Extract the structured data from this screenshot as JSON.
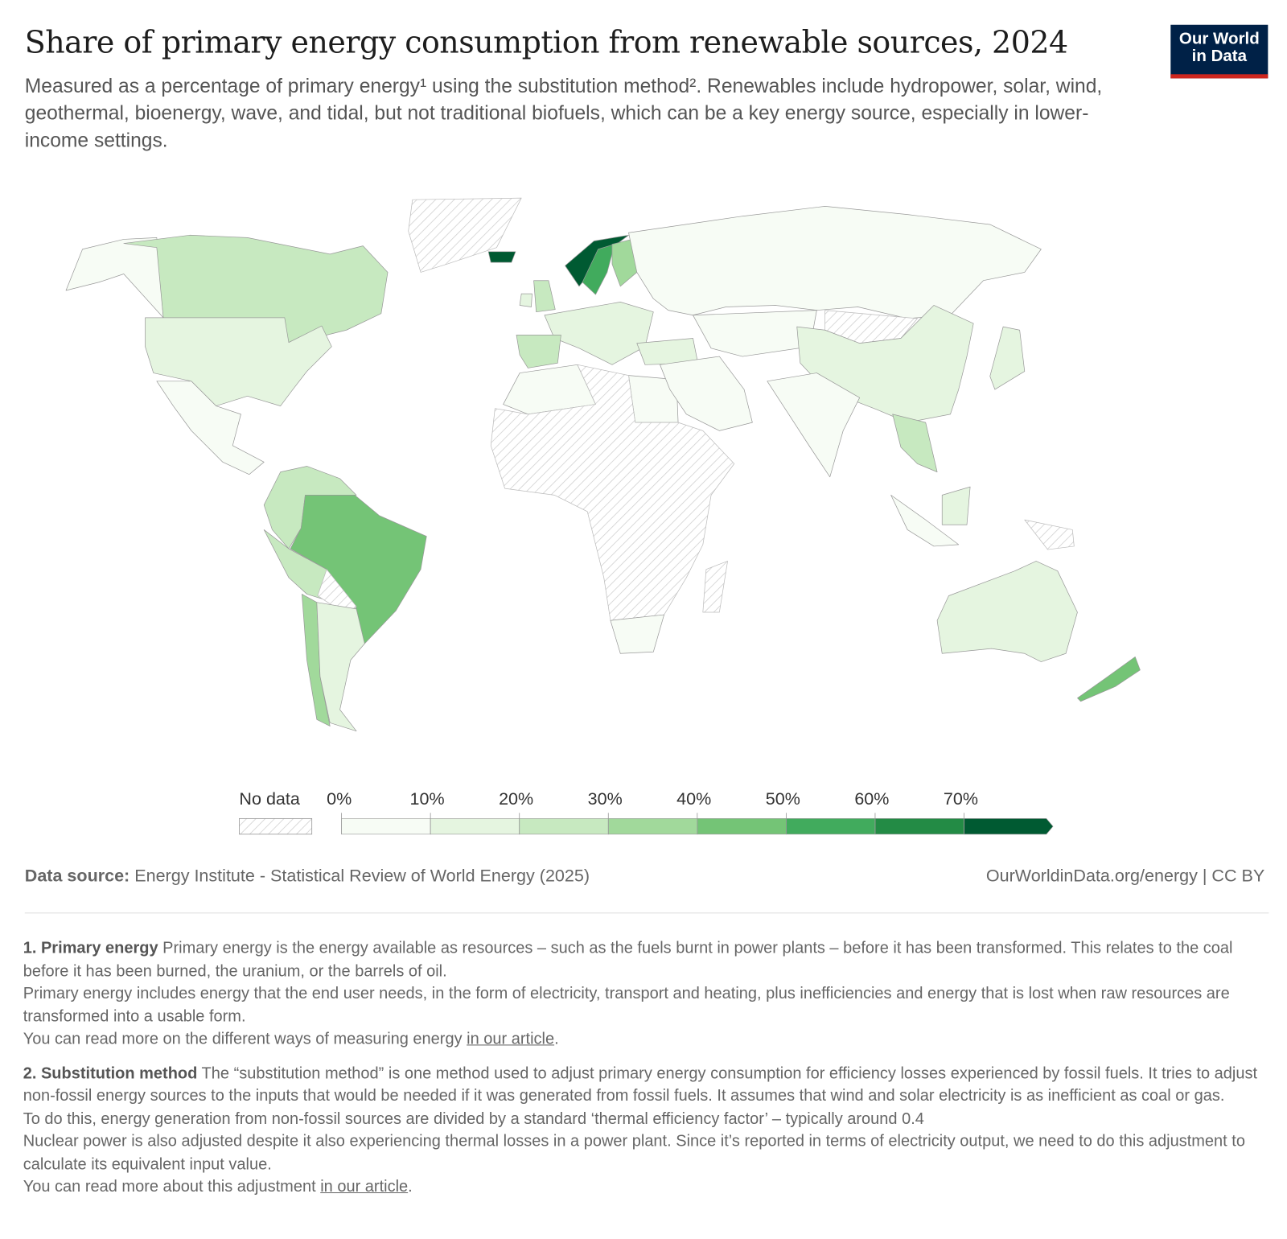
{
  "header": {
    "title": "Share of primary energy consumption from renewable sources, 2024",
    "subtitle": "Measured as a percentage of primary energy¹ using the substitution method². Renewables include hydropower, solar, wind, geothermal, bioenergy, wave, and tidal, but not traditional biofuels, which can be a key energy source, especially in lower-income settings.",
    "logo_line1": "Our World",
    "logo_line2": "in Data"
  },
  "chart_data": {
    "type": "choropleth",
    "year": 2024,
    "unit": "%",
    "legend": {
      "no_data_label": "No data",
      "bins": [
        "0%",
        "10%",
        "20%",
        "30%",
        "40%",
        "50%",
        "60%",
        "70%"
      ],
      "colors": [
        "#f7fcf5",
        "#e5f5e0",
        "#c7e9c0",
        "#a1d99b",
        "#74c476",
        "#41ab5d",
        "#238b45",
        "#005a32"
      ],
      "no_data_color": "#d6d6d6"
    },
    "regions": [
      {
        "id": "alaska-usa",
        "value": 9
      },
      {
        "id": "canada",
        "value": 29
      },
      {
        "id": "usa",
        "value": 10
      },
      {
        "id": "mexico",
        "value": 8
      },
      {
        "id": "greenland",
        "value": null
      },
      {
        "id": "colombia-venezuela",
        "value": 24
      },
      {
        "id": "brazil",
        "value": 48
      },
      {
        "id": "peru-bolivia",
        "value": 22
      },
      {
        "id": "paraguay",
        "value": null
      },
      {
        "id": "chile",
        "value": 30
      },
      {
        "id": "argentina",
        "value": 12
      },
      {
        "id": "north-africa",
        "value": 3
      },
      {
        "id": "egypt",
        "value": 6
      },
      {
        "id": "sub-saharan-africa",
        "value": null
      },
      {
        "id": "south-africa",
        "value": 7
      },
      {
        "id": "madagascar",
        "value": null
      },
      {
        "id": "iceland",
        "value": 80
      },
      {
        "id": "norway",
        "value": 72
      },
      {
        "id": "sweden",
        "value": 55
      },
      {
        "id": "finland",
        "value": 37
      },
      {
        "id": "united-kingdom",
        "value": 21
      },
      {
        "id": "ireland",
        "value": 14
      },
      {
        "id": "western-europe",
        "value": 18
      },
      {
        "id": "iberia",
        "value": 25
      },
      {
        "id": "turkey",
        "value": 17
      },
      {
        "id": "russia",
        "value": 6
      },
      {
        "id": "central-asia",
        "value": 3
      },
      {
        "id": "mongolia",
        "value": null
      },
      {
        "id": "china",
        "value": 17
      },
      {
        "id": "middle-east",
        "value": 2
      },
      {
        "id": "india",
        "value": 9
      },
      {
        "id": "southeast-asia",
        "value": 22
      },
      {
        "id": "indonesia",
        "value": 9
      },
      {
        "id": "borneo",
        "value": 12
      },
      {
        "id": "japan",
        "value": 12
      },
      {
        "id": "papua-new-guinea",
        "value": null
      },
      {
        "id": "australia",
        "value": 11
      },
      {
        "id": "new-zealand",
        "value": 40
      }
    ]
  },
  "footer": {
    "source_label": "Data source:",
    "source_text": " Energy Institute - Statistical Review of World Energy (2025)",
    "license": "OurWorldinData.org/energy | CC BY"
  },
  "notes": {
    "n1_title": "1. Primary energy",
    "n1_text": " Primary energy is the energy available as resources – such as the fuels burnt in power plants – before it has been transformed. This relates to the coal before it has been burned, the uranium, or the barrels of oil.",
    "n1_text2": "Primary energy includes energy that the end user needs, in the form of electricity, transport and heating, plus inefficiencies and energy that is lost when raw resources are transformed into a usable form.",
    "n1_more": "You can read more on the different ways of measuring energy ",
    "n1_link": "in our article",
    "n2_title": "2. Substitution method",
    "n2_text": " The “substitution method” is one method used to adjust primary energy consumption for efficiency losses experienced by fossil fuels. It tries to adjust non-fossil energy sources to the inputs that would be needed if it was generated from fossil fuels. It assumes that wind and solar electricity is as inefficient as coal or gas.",
    "n2_text2": "To do this, energy generation from non-fossil sources are divided by a standard ‘thermal efficiency factor’ – typically around 0.4",
    "n2_text3": "Nuclear power is also adjusted despite it also experiencing thermal losses in a power plant. Since it’s reported in terms of electricity output, we need to do this adjustment to calculate its equivalent input value.",
    "n2_more": "You can read more about this adjustment ",
    "n2_link": "in our article",
    "period": "."
  }
}
